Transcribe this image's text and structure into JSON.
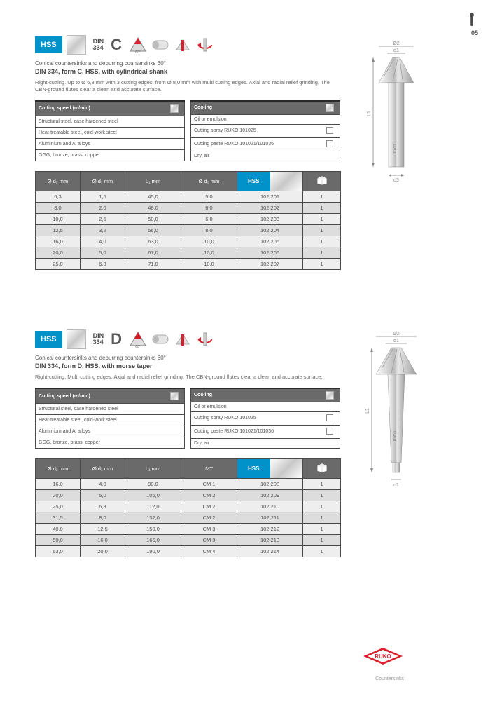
{
  "page_number": "05",
  "brand": "RUKO",
  "footer_text": "Countersinks",
  "sections": [
    {
      "id": "c",
      "hss_label": "HSS",
      "din": "DIN",
      "din_num": "334",
      "form": "C",
      "angle_label": "60°",
      "subtitle": "Conical countersinks and deburring countersinks 60°",
      "title": "DIN 334, form C, HSS, with cylindrical shank",
      "desc": "Right-cutting. Up to Ø 6,3 mm with 3 cutting edges, from Ø 8,0 mm with multi cutting edges. Axial and radial relief grinding. The CBN-ground flutes clear a clean and accurate surface.",
      "box_left": {
        "header": "Cutting speed (m/min)",
        "rows": [
          [
            "Structural steel, case hardened steel",
            ""
          ],
          [
            "Heat-treatable steel, cold-work steel",
            ""
          ],
          [
            "Aluminium and Al alloys",
            ""
          ],
          [
            "GGG, bronze, brass, copper",
            ""
          ]
        ]
      },
      "box_right": {
        "header": "Cooling",
        "rows": [
          [
            "Oil or emulsion",
            ""
          ],
          [
            "Cutting spray RUKO 101025",
            ""
          ],
          [
            "Cutting paste RUKO 101021/101036",
            ""
          ],
          [
            "Dry, air",
            ""
          ]
        ]
      },
      "spec_headers": [
        "Ø d₂ mm",
        "Ø d₁ mm",
        "L₁ mm",
        "Ø d₃ mm",
        "Art. no.",
        ""
      ],
      "spec_rows": [
        [
          "6,3",
          "1,6",
          "45,0",
          "5,0",
          "102 201",
          "1"
        ],
        [
          "8,0",
          "2,0",
          "48,0",
          "6,0",
          "102 202",
          "1"
        ],
        [
          "10,0",
          "2,5",
          "50,0",
          "6,0",
          "102 203",
          "1"
        ],
        [
          "12,5",
          "3,2",
          "56,0",
          "8,0",
          "102 204",
          "1"
        ],
        [
          "16,0",
          "4,0",
          "63,0",
          "10,0",
          "102 205",
          "1"
        ],
        [
          "20,0",
          "5,0",
          "67,0",
          "10,0",
          "102 206",
          "1"
        ],
        [
          "25,0",
          "6,3",
          "71,0",
          "10,0",
          "102 207",
          "1"
        ]
      ]
    },
    {
      "id": "d",
      "hss_label": "HSS",
      "din": "DIN",
      "din_num": "334",
      "form": "D",
      "angle_label": "60°",
      "subtitle": "Conical countersinks and deburring countersinks 60°",
      "title": "DIN 334, form D, HSS, with morse taper",
      "desc": "Right-cutting. Multi cutting edges. Axial and radial relief grinding. The CBN-ground flutes clear a clean and accurate surface.",
      "box_left": {
        "header": "Cutting speed (m/min)",
        "rows": [
          [
            "Structural steel, case hardened steel",
            ""
          ],
          [
            "Heat-treatable steel, cold-work steel",
            ""
          ],
          [
            "Aluminium and Al alloys",
            ""
          ],
          [
            "GGG, bronze, brass, copper",
            ""
          ]
        ]
      },
      "box_right": {
        "header": "Cooling",
        "rows": [
          [
            "Oil or emulsion",
            ""
          ],
          [
            "Cutting spray RUKO 101025",
            ""
          ],
          [
            "Cutting paste RUKO 101021/101036",
            ""
          ],
          [
            "Dry, air",
            ""
          ]
        ]
      },
      "spec_headers": [
        "Ø d₂ mm",
        "Ø d₁ mm",
        "L₁ mm",
        "MT",
        "Art. no.",
        ""
      ],
      "spec_rows": [
        [
          "16,0",
          "4,0",
          "90,0",
          "CM 1",
          "102 208",
          "1"
        ],
        [
          "20,0",
          "5,0",
          "106,0",
          "CM 2",
          "102 209",
          "1"
        ],
        [
          "25,0",
          "6,3",
          "112,0",
          "CM 2",
          "102 210",
          "1"
        ],
        [
          "31,5",
          "8,0",
          "132,0",
          "CM 2",
          "102 211",
          "1"
        ],
        [
          "40,0",
          "12,5",
          "150,0",
          "CM 3",
          "102 212",
          "1"
        ],
        [
          "50,0",
          "16,0",
          "165,0",
          "CM 3",
          "102 213",
          "1"
        ],
        [
          "63,0",
          "20,0",
          "190,0",
          "CM 4",
          "102 214",
          "1"
        ]
      ]
    }
  ],
  "diagram_labels": {
    "d2": "Ø2",
    "d1": "d1",
    "l1": "L1",
    "d3": "d3"
  },
  "colors": {
    "accent": "#0092c8",
    "border": "#4a4a4a",
    "row_odd": "#eeeeee",
    "row_even": "#dddddd",
    "header_bg": "#6a6a6a",
    "red": "#d81f2a"
  }
}
